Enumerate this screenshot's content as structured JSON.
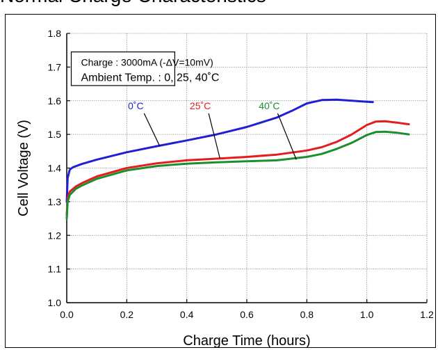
{
  "page_title": "Normal Charge Characteristics",
  "chart_data": {
    "type": "line",
    "title": "Normal Charge Characteristics",
    "xlabel": "Charge Time (hours)",
    "ylabel": "Cell Voltage (V)",
    "xlim": [
      0,
      1.2
    ],
    "ylim": [
      1.0,
      1.8
    ],
    "xticks": [
      "0.0",
      "0.2",
      "0.4",
      "0.6",
      "0.8",
      "1.0",
      "1.2"
    ],
    "yticks": [
      "1.0",
      "1.1",
      "1.2",
      "1.3",
      "1.4",
      "1.5",
      "1.6",
      "1.7",
      "1.8"
    ],
    "grid": true,
    "annotation_lines": [
      "Charge : 3000mA (-ΔV=10mV)",
      "Ambient Temp. : 0, 25, 40˚C"
    ],
    "series": [
      {
        "name": "0˚C",
        "color": "#1f1fd6",
        "label_at": [
          0.23,
          1.575
        ],
        "leader_to": [
          0.31,
          1.465
        ],
        "x": [
          0.0,
          0.003,
          0.01,
          0.02,
          0.05,
          0.1,
          0.2,
          0.3,
          0.4,
          0.5,
          0.6,
          0.7,
          0.75,
          0.8,
          0.85,
          0.9,
          0.95,
          1.0,
          1.02
        ],
        "values": [
          1.3,
          1.37,
          1.395,
          1.402,
          1.412,
          1.425,
          1.447,
          1.465,
          1.482,
          1.5,
          1.522,
          1.55,
          1.57,
          1.592,
          1.602,
          1.603,
          1.6,
          1.597,
          1.596
        ]
      },
      {
        "name": "25˚C",
        "color": "#e31d1d",
        "label_at": [
          0.445,
          1.575
        ],
        "leader_to": [
          0.51,
          1.43
        ],
        "x": [
          0.0,
          0.003,
          0.01,
          0.03,
          0.05,
          0.1,
          0.2,
          0.3,
          0.4,
          0.5,
          0.6,
          0.7,
          0.8,
          0.85,
          0.9,
          0.95,
          1.0,
          1.03,
          1.06,
          1.1,
          1.14
        ],
        "values": [
          1.26,
          1.31,
          1.33,
          1.345,
          1.355,
          1.375,
          1.4,
          1.414,
          1.423,
          1.428,
          1.433,
          1.44,
          1.452,
          1.462,
          1.478,
          1.5,
          1.528,
          1.538,
          1.539,
          1.535,
          1.53
        ]
      },
      {
        "name": "40˚C",
        "color": "#1a8f2e",
        "label_at": [
          0.675,
          1.575
        ],
        "leader_to": [
          0.765,
          1.425
        ],
        "x": [
          0.0,
          0.003,
          0.01,
          0.03,
          0.05,
          0.1,
          0.2,
          0.3,
          0.4,
          0.5,
          0.6,
          0.7,
          0.8,
          0.85,
          0.9,
          0.95,
          1.0,
          1.03,
          1.06,
          1.1,
          1.14
        ],
        "values": [
          1.25,
          1.3,
          1.32,
          1.338,
          1.348,
          1.368,
          1.393,
          1.406,
          1.413,
          1.417,
          1.42,
          1.423,
          1.433,
          1.442,
          1.457,
          1.475,
          1.498,
          1.507,
          1.508,
          1.505,
          1.5
        ]
      }
    ]
  }
}
